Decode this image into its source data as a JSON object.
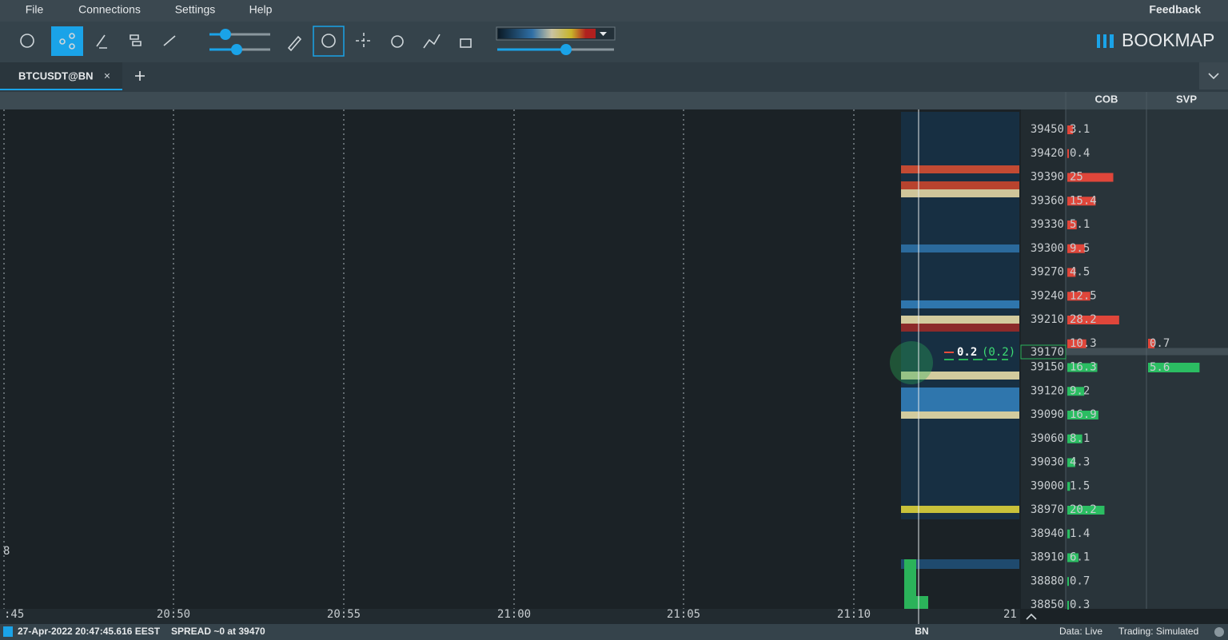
{
  "menu": [
    "File",
    "Connections",
    "Settings",
    "Help"
  ],
  "feedback": "Feedback",
  "brand": "BOOKMAP",
  "tab": "BTCUSDT@BN",
  "columns": [
    "COB",
    "SVP"
  ],
  "time_axis": [
    ":45",
    "20:50",
    "20:55",
    "21:00",
    "21:05",
    "21:10",
    "21"
  ],
  "left_label": "8",
  "ladder": {
    "asks": [
      {
        "price": 39450,
        "size": 3.1
      },
      {
        "price": 39420,
        "size": 0.4
      },
      {
        "price": 39390,
        "size": 25
      },
      {
        "price": 39360,
        "size": 15.4
      },
      {
        "price": 39330,
        "size": 5.1
      },
      {
        "price": 39300,
        "size": 9.5
      },
      {
        "price": 39270,
        "size": 4.5
      },
      {
        "price": 39240,
        "size": 12.5
      },
      {
        "price": 39210,
        "size": 28.2
      },
      {
        "price": null,
        "size": 10.3
      }
    ],
    "current_price": 39170,
    "bids": [
      {
        "price": 39150,
        "size": 16.3
      },
      {
        "price": 39120,
        "size": 9.2
      },
      {
        "price": 39090,
        "size": 16.9
      },
      {
        "price": 39060,
        "size": 8.1
      },
      {
        "price": 39030,
        "size": 4.3
      },
      {
        "price": 39000,
        "size": 1.5
      },
      {
        "price": 38970,
        "size": 20.2
      },
      {
        "price": 38940,
        "size": 1.4
      },
      {
        "price": 38910,
        "size": 6.1
      },
      {
        "price": 38880,
        "size": 0.7
      },
      {
        "price": 38850,
        "size": 0.3
      }
    ]
  },
  "trade": {
    "size": 0.2,
    "delta": "(0.2)"
  },
  "svp": [
    0.7,
    5.6
  ],
  "status": {
    "timestamp": "27-Apr-2022 20:47:45.616 EEST",
    "spread": "SPREAD ~0 at 39470",
    "exchange": "BN",
    "data": "Data: Live",
    "trading": "Trading: Simulated"
  }
}
